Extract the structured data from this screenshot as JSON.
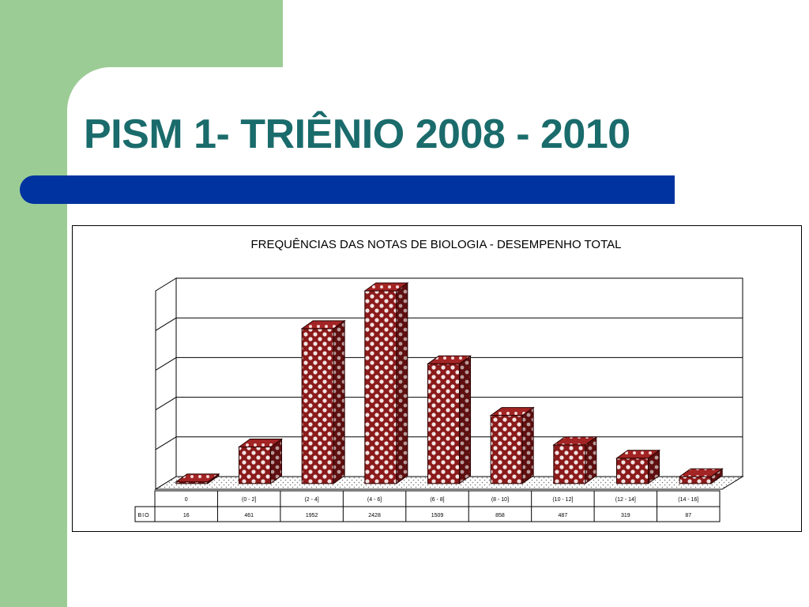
{
  "slide": {
    "title": "PISM 1- TRIÊNIO 2008 - 2010",
    "colors": {
      "green": "#9ccc95",
      "title": "#1a6b6b",
      "bar": "#0033a0"
    }
  },
  "chart_data": {
    "type": "bar",
    "style": "3d-column-with-data-table",
    "title": "FREQUÊNCIAS DAS NOTAS DE BIOLOGIA - DESEMPENHO TOTAL",
    "categories": [
      "0",
      "(0 - 2]",
      "(2 - 4]",
      "(4 - 6]",
      "(6 - 8]",
      "(8 - 10]",
      "(10 - 12]",
      "(12 - 14]",
      "(14 - 16]"
    ],
    "series": [
      {
        "name": "BIO",
        "values": [
          16,
          461,
          1952,
          2428,
          1509,
          858,
          487,
          319,
          87
        ],
        "color": "#8b1a1a"
      }
    ],
    "ylim": [
      0,
      2500
    ],
    "grid": true,
    "legend": "data-table"
  }
}
